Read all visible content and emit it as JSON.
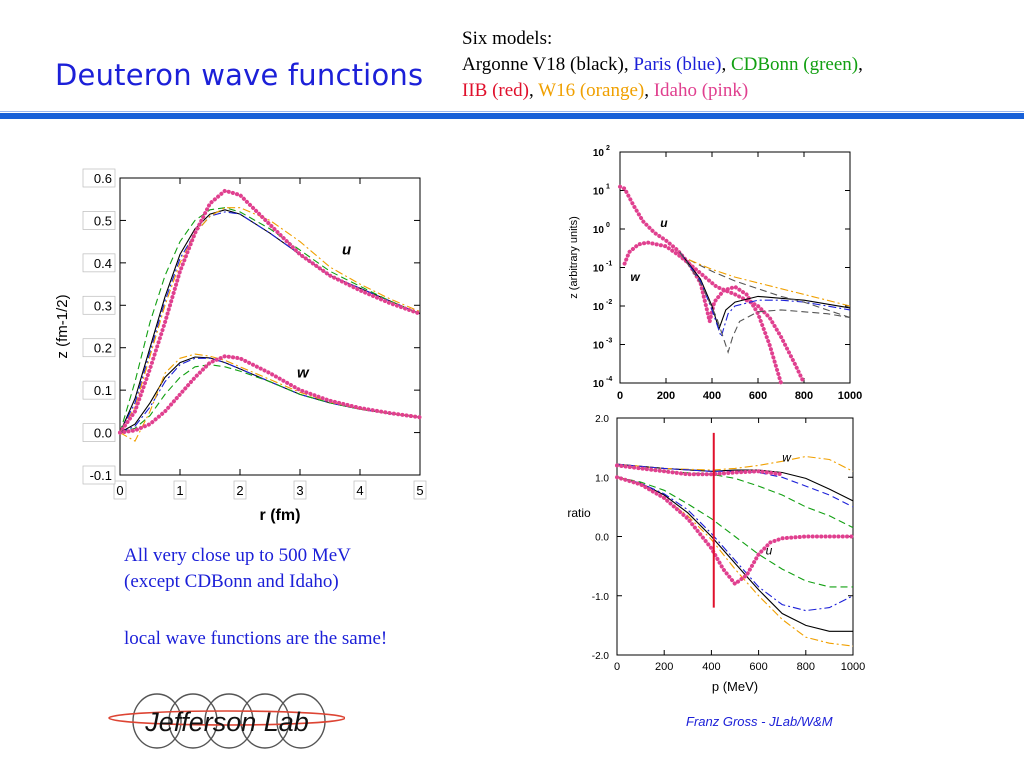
{
  "title": "Deuteron wave functions",
  "models": {
    "heading": "Six models:",
    "items": [
      {
        "text": "Argonne V18 (black)",
        "color": "#000000"
      },
      {
        "text": "Paris (blue)",
        "color": "#1c20d8"
      },
      {
        "text": "CDBonn (green)",
        "color": "#12a012"
      },
      {
        "text": "IIB (red)",
        "color": "#e0102c"
      },
      {
        "text": "W16 (orange)",
        "color": "#f0a000"
      },
      {
        "text": "Idaho (pink)",
        "color": "#e0408f"
      }
    ]
  },
  "notes": {
    "line1": "All very close up to 500 MeV",
    "line2": "(except CDBonn and Idaho)",
    "line3": "local wave functions are the same!"
  },
  "footer": {
    "author": "Franz Gross",
    "affil": " - JLab/W&M"
  },
  "logo_text": "Jefferson Lab",
  "chart_data": [
    {
      "type": "line",
      "xlabel": "r (fm)",
      "ylabel": "z (fm-1/2)",
      "xlim": [
        0,
        5
      ],
      "ylim": [
        -0.1,
        0.6
      ],
      "xticks": [
        "0",
        "1",
        "2",
        "3",
        "4",
        "5"
      ],
      "yticks": [
        "-0.1",
        "0.0",
        "0.1",
        "0.2",
        "0.3",
        "0.4",
        "0.5",
        "0.6"
      ],
      "annotations": [
        "u",
        "w"
      ],
      "series": [
        {
          "curve": "u",
          "style": "solid",
          "color": "#000000",
          "x": [
            0,
            0.25,
            0.5,
            0.75,
            1.0,
            1.25,
            1.5,
            1.75,
            2.0,
            2.5,
            3.0,
            3.5,
            4.0,
            4.5,
            5.0
          ],
          "y": [
            0,
            0.08,
            0.2,
            0.32,
            0.42,
            0.48,
            0.515,
            0.525,
            0.515,
            0.47,
            0.42,
            0.37,
            0.34,
            0.31,
            0.28
          ]
        },
        {
          "curve": "u",
          "style": "dashdot",
          "color": "#1c20d8",
          "x": [
            0,
            0.25,
            0.5,
            0.75,
            1.0,
            1.25,
            1.5,
            1.75,
            2.0,
            2.5,
            3.0,
            3.5,
            4.0,
            4.5,
            5.0
          ],
          "y": [
            0,
            0.07,
            0.19,
            0.31,
            0.41,
            0.47,
            0.51,
            0.52,
            0.515,
            0.47,
            0.42,
            0.37,
            0.34,
            0.31,
            0.28
          ]
        },
        {
          "curve": "u",
          "style": "dashed",
          "color": "#12a012",
          "x": [
            0,
            0.25,
            0.5,
            0.75,
            1.0,
            1.25,
            1.5,
            1.75,
            2.0,
            2.5,
            3.0,
            3.5,
            4.0,
            4.5,
            5.0
          ],
          "y": [
            0,
            0.12,
            0.26,
            0.37,
            0.45,
            0.5,
            0.525,
            0.53,
            0.52,
            0.48,
            0.43,
            0.38,
            0.345,
            0.31,
            0.28
          ]
        },
        {
          "curve": "u",
          "style": "dashdot",
          "color": "#f0a000",
          "x": [
            0,
            0.25,
            0.5,
            0.75,
            1.0,
            1.25,
            1.5,
            1.75,
            2.0,
            2.5,
            3.0,
            3.5,
            4.0,
            4.5,
            5.0
          ],
          "y": [
            0,
            0.06,
            0.18,
            0.3,
            0.4,
            0.47,
            0.51,
            0.53,
            0.53,
            0.5,
            0.45,
            0.39,
            0.35,
            0.315,
            0.285
          ]
        },
        {
          "curve": "u",
          "style": "dots",
          "color": "#e0408f",
          "x": [
            0,
            0.25,
            0.5,
            0.75,
            1.0,
            1.25,
            1.5,
            1.75,
            2.0,
            2.5,
            3.0,
            3.5,
            4.0,
            4.5,
            5.0
          ],
          "y": [
            0,
            0.05,
            0.15,
            0.26,
            0.38,
            0.47,
            0.54,
            0.57,
            0.56,
            0.49,
            0.42,
            0.37,
            0.335,
            0.305,
            0.28
          ]
        },
        {
          "curve": "w",
          "style": "solid",
          "color": "#000000",
          "x": [
            0,
            0.25,
            0.5,
            0.75,
            1.0,
            1.25,
            1.5,
            1.75,
            2.0,
            2.5,
            3.0,
            3.5,
            4.0,
            4.5,
            5.0
          ],
          "y": [
            0,
            0.02,
            0.07,
            0.13,
            0.165,
            0.178,
            0.176,
            0.165,
            0.15,
            0.12,
            0.09,
            0.07,
            0.055,
            0.045,
            0.036
          ]
        },
        {
          "curve": "w",
          "style": "dashdot",
          "color": "#1c20d8",
          "x": [
            0,
            0.25,
            0.5,
            0.75,
            1.0,
            1.25,
            1.5,
            1.75,
            2.0,
            2.5,
            3.0,
            3.5,
            4.0,
            4.5,
            5.0
          ],
          "y": [
            0,
            0.015,
            0.06,
            0.12,
            0.16,
            0.175,
            0.175,
            0.165,
            0.15,
            0.12,
            0.09,
            0.07,
            0.055,
            0.045,
            0.036
          ]
        },
        {
          "curve": "w",
          "style": "dashed",
          "color": "#12a012",
          "x": [
            0,
            0.25,
            0.5,
            0.75,
            1.0,
            1.25,
            1.5,
            1.75,
            2.0,
            2.5,
            3.0,
            3.5,
            4.0,
            4.5,
            5.0
          ],
          "y": [
            0,
            0.01,
            0.04,
            0.09,
            0.13,
            0.155,
            0.16,
            0.155,
            0.145,
            0.12,
            0.09,
            0.07,
            0.055,
            0.045,
            0.036
          ]
        },
        {
          "curve": "w",
          "style": "dashdot",
          "color": "#f0a000",
          "x": [
            0,
            0.25,
            0.5,
            0.75,
            1.0,
            1.25,
            1.5,
            1.75,
            2.0,
            2.5,
            3.0,
            3.5,
            4.0,
            4.5,
            5.0
          ],
          "y": [
            0,
            -0.02,
            0.05,
            0.14,
            0.175,
            0.185,
            0.18,
            0.17,
            0.155,
            0.125,
            0.095,
            0.072,
            0.056,
            0.046,
            0.037
          ]
        },
        {
          "curve": "w",
          "style": "dots",
          "color": "#e0408f",
          "x": [
            0,
            0.25,
            0.5,
            0.75,
            1.0,
            1.25,
            1.5,
            1.75,
            2.0,
            2.5,
            3.0,
            3.5,
            4.0,
            4.5,
            5.0
          ],
          "y": [
            0,
            0.005,
            0.02,
            0.05,
            0.09,
            0.13,
            0.165,
            0.18,
            0.175,
            0.14,
            0.1,
            0.075,
            0.058,
            0.046,
            0.036
          ]
        }
      ]
    },
    {
      "type": "line",
      "ylabel": "z (arbitrary units)",
      "xlim": [
        0,
        1000
      ],
      "ylim": [
        -4,
        2
      ],
      "xticks": [
        "0",
        "200",
        "400",
        "600",
        "800",
        "1000"
      ],
      "yticks": [
        {
          "base": "10",
          "exp": "2"
        },
        {
          "base": "10",
          "exp": "1"
        },
        {
          "base": "10",
          "exp": "0"
        },
        {
          "base": "10",
          "exp": "-1"
        },
        {
          "base": "10",
          "exp": "-2"
        },
        {
          "base": "10",
          "exp": "-3"
        },
        {
          "base": "10",
          "exp": "-4"
        }
      ],
      "log_scale": "y",
      "annotations": [
        "u",
        "w"
      ],
      "series": [
        {
          "curve": "u",
          "style": "dots",
          "color": "#e0408f",
          "x": [
            0,
            20,
            60,
            100,
            150,
            200,
            250,
            300,
            350,
            370,
            390,
            410,
            450,
            500,
            550,
            600,
            650,
            700
          ],
          "y": [
            1.1,
            1.05,
            0.6,
            0.2,
            -0.1,
            -0.3,
            -0.55,
            -0.9,
            -1.4,
            -1.9,
            -2.4,
            -1.9,
            -1.6,
            -1.5,
            -1.7,
            -2.2,
            -3.0,
            -4.0
          ]
        },
        {
          "curve": "w",
          "style": "dots",
          "color": "#e0408f",
          "x": [
            20,
            40,
            80,
            120,
            200,
            260,
            300,
            340,
            380,
            420,
            500,
            600,
            650,
            700,
            760,
            800
          ],
          "y": [
            -0.9,
            -0.6,
            -0.4,
            -0.35,
            -0.45,
            -0.7,
            -0.9,
            -1.1,
            -1.3,
            -1.5,
            -1.7,
            -2.0,
            -2.3,
            -2.8,
            -3.5,
            -4.0
          ]
        },
        {
          "curve": "u",
          "style": "solid",
          "color": "#000000",
          "x": [
            260,
            350,
            400,
            430,
            460,
            500,
            600,
            700,
            800,
            900,
            1000
          ],
          "y": [
            -0.6,
            -1.3,
            -2.0,
            -2.6,
            -2.1,
            -1.9,
            -1.75,
            -1.8,
            -1.85,
            -1.95,
            -2.05
          ]
        },
        {
          "curve": "u",
          "style": "dashdot",
          "color": "#1c20d8",
          "x": [
            260,
            350,
            400,
            440,
            470,
            500,
            600,
            700,
            800,
            900,
            1000
          ],
          "y": [
            -0.6,
            -1.35,
            -2.1,
            -2.8,
            -2.2,
            -2.0,
            -1.85,
            -1.85,
            -1.9,
            -2.0,
            -2.1
          ]
        },
        {
          "curve": "u",
          "style": "dashed",
          "color": "#555555",
          "x": [
            260,
            350,
            420,
            470,
            490,
            520,
            600,
            700,
            800,
            900,
            1000
          ],
          "y": [
            -0.6,
            -1.4,
            -2.3,
            -3.2,
            -2.8,
            -2.4,
            -2.15,
            -2.1,
            -2.15,
            -2.2,
            -2.3
          ]
        },
        {
          "curve": "w",
          "style": "dashed",
          "color": "#555555",
          "x": [
            300,
            400,
            500,
            600,
            700,
            800,
            900,
            1000
          ],
          "y": [
            -0.8,
            -1.1,
            -1.35,
            -1.55,
            -1.75,
            -1.9,
            -2.1,
            -2.3
          ]
        },
        {
          "curve": "w",
          "style": "dashdot",
          "color": "#f0a000",
          "x": [
            300,
            400,
            500,
            600,
            700,
            800,
            900,
            1000
          ],
          "y": [
            -0.8,
            -1.05,
            -1.25,
            -1.4,
            -1.55,
            -1.7,
            -1.85,
            -2.0
          ]
        }
      ]
    },
    {
      "type": "line",
      "ylabel": "ratio",
      "xlabel": "p (MeV)",
      "xlim": [
        0,
        1000
      ],
      "ylim": [
        -2.0,
        2.0
      ],
      "xticks": [
        "0",
        "200",
        "400",
        "600",
        "800",
        "1000"
      ],
      "yticks": [
        "-2.0",
        "-1.0",
        "0.0",
        "1.0",
        "2.0"
      ],
      "annotations": [
        "w",
        "u"
      ],
      "marker_line_x": 410,
      "series": [
        {
          "curve": "w",
          "style": "solid",
          "color": "#000000",
          "x": [
            0,
            200,
            400,
            500,
            600,
            700,
            800,
            900,
            1000
          ],
          "y": [
            1.22,
            1.15,
            1.1,
            1.12,
            1.12,
            1.08,
            0.98,
            0.8,
            0.6
          ]
        },
        {
          "curve": "w",
          "style": "dashdot",
          "color": "#f0a000",
          "x": [
            0,
            200,
            400,
            500,
            600,
            700,
            800,
            900,
            1000
          ],
          "y": [
            1.22,
            1.15,
            1.12,
            1.15,
            1.2,
            1.27,
            1.35,
            1.3,
            1.1
          ]
        },
        {
          "curve": "w",
          "style": "dashed",
          "color": "#1c20d8",
          "x": [
            0,
            200,
            400,
            500,
            600,
            700,
            800,
            900,
            1000
          ],
          "y": [
            1.22,
            1.15,
            1.1,
            1.1,
            1.08,
            1.0,
            0.85,
            0.7,
            0.5
          ]
        },
        {
          "curve": "w",
          "style": "dashed",
          "color": "#12a012",
          "x": [
            0,
            200,
            400,
            500,
            600,
            700,
            800,
            900,
            1000
          ],
          "y": [
            1.2,
            1.1,
            1.05,
            0.98,
            0.85,
            0.7,
            0.5,
            0.35,
            0.15
          ]
        },
        {
          "curve": "w",
          "style": "dots",
          "color": "#e0408f",
          "x": [
            0,
            100,
            200,
            300,
            400,
            500,
            600,
            700
          ],
          "y": [
            1.2,
            1.15,
            1.1,
            1.05,
            1.05,
            1.08,
            1.1,
            1.05
          ]
        },
        {
          "curve": "u",
          "style": "solid",
          "color": "#000000",
          "x": [
            0,
            100,
            200,
            300,
            400,
            500,
            600,
            700,
            800,
            900,
            1000
          ],
          "y": [
            1.0,
            0.9,
            0.7,
            0.4,
            0.0,
            -0.45,
            -0.9,
            -1.3,
            -1.5,
            -1.6,
            -1.6
          ]
        },
        {
          "curve": "u",
          "style": "dashdot",
          "color": "#1c20d8",
          "x": [
            0,
            100,
            200,
            300,
            400,
            500,
            600,
            700,
            800,
            900,
            1000
          ],
          "y": [
            1.0,
            0.9,
            0.72,
            0.45,
            0.05,
            -0.4,
            -0.85,
            -1.15,
            -1.25,
            -1.2,
            -1.0
          ]
        },
        {
          "curve": "u",
          "style": "dashed",
          "color": "#12a012",
          "x": [
            0,
            100,
            200,
            300,
            400,
            500,
            600,
            700,
            800,
            900,
            1000
          ],
          "y": [
            1.0,
            0.92,
            0.78,
            0.55,
            0.3,
            0.0,
            -0.3,
            -0.55,
            -0.75,
            -0.85,
            -0.85
          ]
        },
        {
          "curve": "u",
          "style": "dashdot",
          "color": "#f0a000",
          "x": [
            0,
            100,
            200,
            300,
            400,
            500,
            600,
            700,
            800,
            900,
            1000
          ],
          "y": [
            1.0,
            0.88,
            0.65,
            0.35,
            -0.05,
            -0.55,
            -1.0,
            -1.4,
            -1.7,
            -1.8,
            -1.85
          ]
        },
        {
          "curve": "u",
          "style": "dots",
          "color": "#e0408f",
          "x": [
            0,
            100,
            200,
            300,
            400,
            450,
            500,
            550,
            600,
            650,
            700,
            800,
            1000
          ],
          "y": [
            1.0,
            0.88,
            0.65,
            0.3,
            -0.2,
            -0.55,
            -0.8,
            -0.65,
            -0.3,
            -0.1,
            -0.03,
            0.0,
            0.0
          ]
        }
      ]
    }
  ]
}
